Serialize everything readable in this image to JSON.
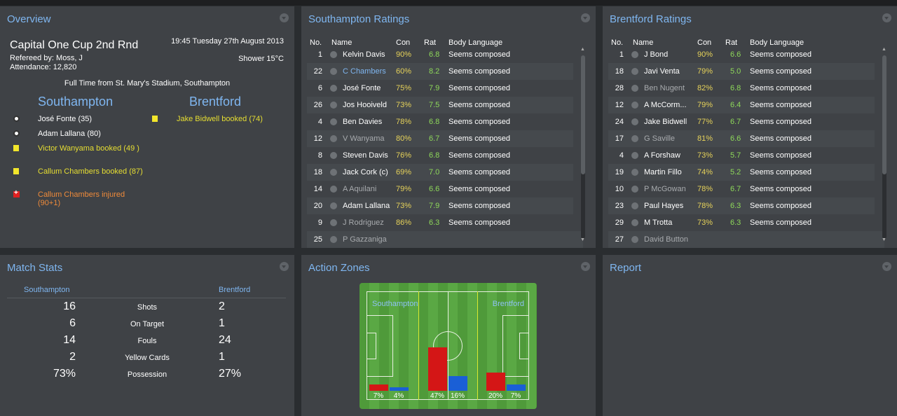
{
  "overview": {
    "title": "Overview",
    "competition": "Capital One Cup 2nd Rnd",
    "referee": "Refereed by: Moss, J",
    "attendance": "Attendance: 12,820",
    "datetime": "19:45 Tuesday 27th August 2013",
    "weather": "Shower 15°C",
    "full_time": "Full Time from St. Mary's Stadium, Southampton",
    "home_team": "Southampton",
    "away_team": "Brentford",
    "home_events": [
      {
        "type": "goal",
        "text": "José Fonte (35)"
      },
      {
        "type": "goal",
        "text": "Adam Lallana (80)"
      },
      {
        "type": "yellow",
        "text": "Victor Wanyama booked (49 )"
      },
      {
        "type": "yellow",
        "text": "Callum Chambers booked (87)"
      },
      {
        "type": "injury",
        "text": "Callum Chambers injured (90+1)"
      }
    ],
    "away_events": [
      {
        "type": "yellow",
        "text": "Jake Bidwell booked (74)"
      }
    ]
  },
  "southampton_ratings": {
    "title": "Southampton Ratings",
    "headers": {
      "no": "No.",
      "name": "Name",
      "con": "Con",
      "rat": "Rat",
      "body": "Body Language"
    },
    "rows": [
      {
        "no": "1",
        "name": "Kelvin Davis",
        "con": "90%",
        "rat": "6.8",
        "body": "Seems composed"
      },
      {
        "no": "22",
        "name": "C Chambers",
        "con": "60%",
        "rat": "8.2",
        "body": "Seems composed"
      },
      {
        "no": "6",
        "name": "José Fonte",
        "con": "75%",
        "rat": "7.9",
        "body": "Seems composed"
      },
      {
        "no": "26",
        "name": "Jos Hooiveld",
        "con": "73%",
        "rat": "7.5",
        "body": "Seems composed"
      },
      {
        "no": "4",
        "name": "Ben Davies",
        "con": "78%",
        "rat": "6.8",
        "body": "Seems composed"
      },
      {
        "no": "12",
        "name": "V Wanyama",
        "con": "80%",
        "rat": "6.7",
        "body": "Seems composed"
      },
      {
        "no": "8",
        "name": "Steven Davis",
        "con": "76%",
        "rat": "6.8",
        "body": "Seems composed"
      },
      {
        "no": "18",
        "name": "Jack Cork (c)",
        "con": "69%",
        "rat": "7.0",
        "body": "Seems composed"
      },
      {
        "no": "14",
        "name": "A Aquilani",
        "con": "79%",
        "rat": "6.6",
        "body": "Seems composed"
      },
      {
        "no": "20",
        "name": "Adam Lallana",
        "con": "73%",
        "rat": "7.9",
        "body": "Seems composed"
      },
      {
        "no": "9",
        "name": "J Rodriguez",
        "con": "86%",
        "rat": "6.3",
        "body": "Seems composed"
      },
      {
        "no": "25",
        "name": "P Gazzaniga",
        "con": "",
        "rat": "",
        "body": ""
      }
    ]
  },
  "brentford_ratings": {
    "title": "Brentford Ratings",
    "headers": {
      "no": "No.",
      "name": "Name",
      "con": "Con",
      "rat": "Rat",
      "body": "Body Language"
    },
    "rows": [
      {
        "no": "1",
        "name": "J Bond",
        "con": "90%",
        "rat": "6.6",
        "body": "Seems composed"
      },
      {
        "no": "18",
        "name": "Javi Venta",
        "con": "79%",
        "rat": "5.0",
        "body": "Seems composed"
      },
      {
        "no": "28",
        "name": "Ben Nugent",
        "con": "82%",
        "rat": "6.8",
        "body": "Seems composed"
      },
      {
        "no": "12",
        "name": "A McCorm...",
        "con": "79%",
        "rat": "6.4",
        "body": "Seems composed"
      },
      {
        "no": "24",
        "name": "Jake Bidwell",
        "con": "77%",
        "rat": "6.7",
        "body": "Seems composed"
      },
      {
        "no": "17",
        "name": "G Saville",
        "con": "81%",
        "rat": "6.6",
        "body": "Seems composed"
      },
      {
        "no": "4",
        "name": "A Forshaw",
        "con": "73%",
        "rat": "5.7",
        "body": "Seems composed"
      },
      {
        "no": "19",
        "name": "Martin Fillo",
        "con": "74%",
        "rat": "5.2",
        "body": "Seems composed"
      },
      {
        "no": "10",
        "name": "P McGowan",
        "con": "78%",
        "rat": "6.7",
        "body": "Seems composed"
      },
      {
        "no": "23",
        "name": "Paul Hayes",
        "con": "78%",
        "rat": "6.3",
        "body": "Seems composed"
      },
      {
        "no": "29",
        "name": "M Trotta",
        "con": "73%",
        "rat": "6.3",
        "body": "Seems composed"
      },
      {
        "no": "27",
        "name": "David Button",
        "con": "",
        "rat": "",
        "body": ""
      }
    ]
  },
  "match_stats": {
    "title": "Match Stats",
    "home_team": "Southampton",
    "away_team": "Brentford",
    "rows": [
      {
        "label": "Shots",
        "home": "16",
        "away": "2"
      },
      {
        "label": "On Target",
        "home": "6",
        "away": "1"
      },
      {
        "label": "Fouls",
        "home": "14",
        "away": "24"
      },
      {
        "label": "Yellow Cards",
        "home": "2",
        "away": "1"
      },
      {
        "label": "Possession",
        "home": "73%",
        "away": "27%"
      }
    ]
  },
  "action_zones": {
    "title": "Action Zones",
    "home_team": "Southampton",
    "away_team": "Brentford",
    "zones": [
      {
        "home_pct": 7,
        "away_pct": 4,
        "home_label": "7%",
        "away_label": "4%"
      },
      {
        "home_pct": 47,
        "away_pct": 16,
        "home_label": "47%",
        "away_label": "16%"
      },
      {
        "home_pct": 20,
        "away_pct": 7,
        "home_label": "20%",
        "away_label": "7%"
      }
    ],
    "colors": {
      "home": "#d41616",
      "away": "#1a5fd6"
    }
  },
  "report": {
    "title": "Report"
  },
  "colors": {
    "accent": "#7fb6f0",
    "yellow_event": "#e6de32",
    "injury_event": "#ee8a3a",
    "con_value": "#e6d25a",
    "rat_value": "#8ed85a",
    "dim_name": "#a8abae",
    "highlight_name": "#7fb6f0"
  }
}
